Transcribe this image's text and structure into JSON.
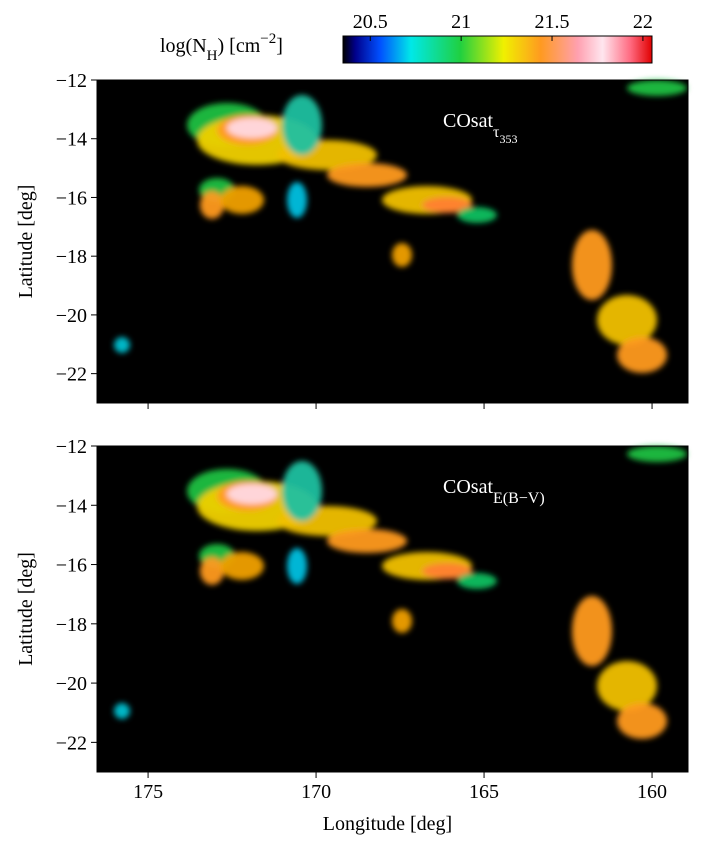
{
  "chart_data": {
    "type": "heatmap",
    "colorbar": {
      "label": [
        "log(N",
        "H",
        ") [cm",
        "−2",
        "]"
      ],
      "lim": [
        20.35,
        22.05
      ],
      "ticks": [
        20.5,
        21,
        21.5,
        22
      ]
    },
    "x_label": "Longitude [deg]",
    "xlim": [
      176.52,
      158.93
    ],
    "xticks": [
      175,
      170,
      165,
      160
    ],
    "ylim": [
      -23,
      -12
    ],
    "yticks": [
      {
        "value": -12,
        "label": "−12"
      },
      {
        "value": -14,
        "label": "−14"
      },
      {
        "value": -16,
        "label": "−16"
      },
      {
        "value": -18,
        "label": "−18"
      },
      {
        "value": -20,
        "label": "−20"
      },
      {
        "value": -22,
        "label": "−22"
      }
    ],
    "panels": [
      {
        "y_label": "Latitude [deg]",
        "annotation": "COsat",
        "annotation_sub": "τ",
        "annotation_subsub": "353"
      },
      {
        "y_label": "Latitude [deg]",
        "annotation": "COsat",
        "annotation_sub": "E(B−V)"
      }
    ]
  }
}
